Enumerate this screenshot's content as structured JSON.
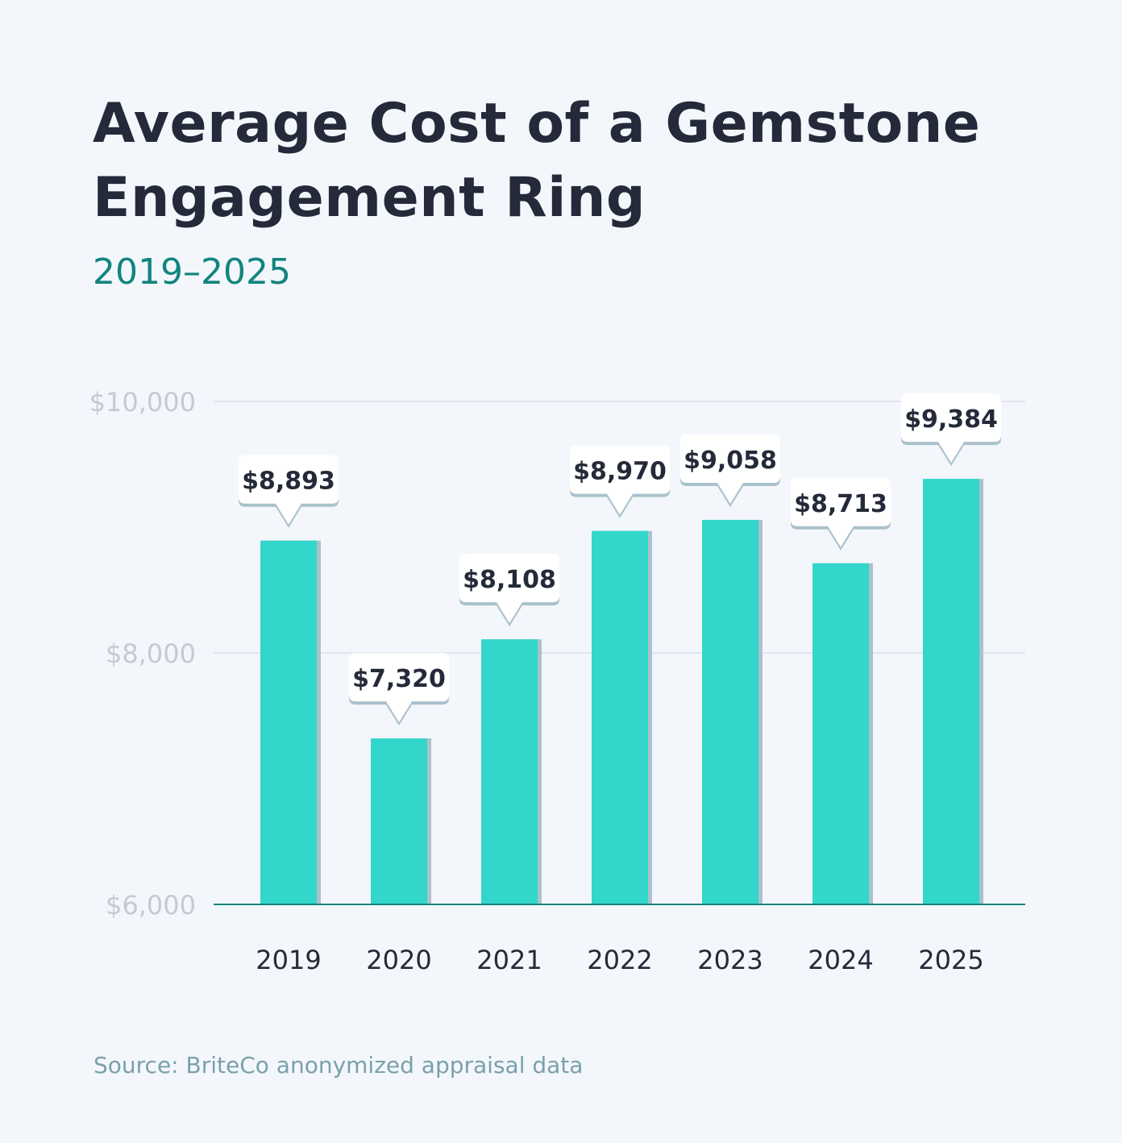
{
  "chart_data": {
    "type": "bar",
    "title": "Average Cost of a Gemstone Engagement Ring",
    "subtitle": "2019–2025",
    "source": "Source: BriteCo anonymized appraisal data",
    "categories": [
      "2019",
      "2020",
      "2021",
      "2022",
      "2023",
      "2024",
      "2025"
    ],
    "values": [
      8893,
      7320,
      8108,
      8970,
      9058,
      8713,
      9384
    ],
    "data_labels": [
      "$8,893",
      "$7,320",
      "$8,108",
      "$8,970",
      "$9,058",
      "$8,713",
      "$9,384"
    ],
    "ylim": [
      6000,
      10000
    ],
    "yticks": [
      6000,
      8000,
      10000
    ],
    "ytick_labels": [
      "$6,000",
      "$8,000",
      "$10,000"
    ],
    "grid": true,
    "colors": {
      "bar": "#33d6ca",
      "bar_shadow": "#aac1cb",
      "title": "#252a3a",
      "subtitle": "#11857d",
      "axis": "#11857d",
      "grid": "#e1e6ee"
    }
  }
}
